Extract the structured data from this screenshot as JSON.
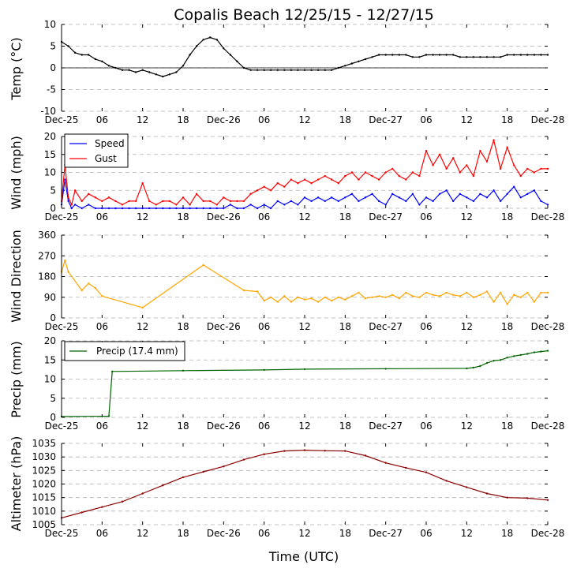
{
  "title": "Copalis Beach 12/25/15 - 12/27/15",
  "xlabel": "Time (UTC)",
  "x_ticks": [
    "Dec-25",
    "06",
    "12",
    "18",
    "Dec-26",
    "06",
    "12",
    "18",
    "Dec-27",
    "06",
    "12",
    "18",
    "Dec-28"
  ],
  "colors": {
    "temp": "#000000",
    "speed": "#0000ff",
    "gust": "#ff0000",
    "direction": "#ffa500",
    "precip": "#006400",
    "altimeter": "#8b0000",
    "zero_line": "#000000",
    "grid": "#b0b0b0"
  },
  "chart_data": [
    {
      "type": "line",
      "name": "temperature",
      "ylabel": "Temp (°C)",
      "ylim": [
        -10,
        10
      ],
      "yticks": [
        -10,
        -5,
        0,
        5,
        10
      ],
      "x_hours_range": [
        0,
        72
      ],
      "series": [
        {
          "name": "Temp",
          "color": "#000000",
          "style": "line",
          "x_hours": [
            0,
            1,
            2,
            3,
            4,
            5,
            6,
            7,
            8,
            9,
            10,
            11,
            12,
            13,
            14,
            15,
            16,
            17,
            18,
            19,
            20,
            21,
            22,
            23,
            24,
            25,
            26,
            27,
            28,
            29,
            30,
            31,
            32,
            33,
            34,
            35,
            36,
            37,
            38,
            39,
            40,
            41,
            42,
            43,
            44,
            45,
            46,
            47,
            48,
            49,
            50,
            51,
            52,
            53,
            54,
            55,
            56,
            57,
            58,
            59,
            60,
            61,
            62,
            63,
            64,
            65,
            66,
            67,
            68,
            69,
            70,
            71,
            72
          ],
          "values": [
            6,
            5,
            3.5,
            3,
            3,
            2,
            1.5,
            0.5,
            0,
            -0.5,
            -0.5,
            -1,
            -0.5,
            -1,
            -1.5,
            -2,
            -1.5,
            -1,
            0.5,
            3,
            5,
            6.5,
            7,
            6.5,
            4.5,
            3,
            1.5,
            0,
            -0.5,
            -0.5,
            -0.5,
            -0.5,
            -0.5,
            -0.5,
            -0.5,
            -0.5,
            -0.5,
            -0.5,
            -0.5,
            -0.5,
            -0.5,
            0,
            0.5,
            1,
            1.5,
            2,
            2.5,
            3,
            3,
            3,
            3,
            3,
            2.5,
            2.5,
            3,
            3,
            3,
            3,
            3,
            2.5,
            2.5,
            2.5,
            2.5,
            2.5,
            2.5,
            2.5,
            3,
            3,
            3,
            3,
            3,
            3,
            3
          ]
        }
      ],
      "zero_line": true,
      "legend": []
    },
    {
      "type": "line",
      "name": "wind",
      "ylabel": "Wind (mph)",
      "ylim": [
        0,
        20
      ],
      "yticks": [
        0,
        5,
        10,
        15,
        20
      ],
      "x_hours_range": [
        0,
        72
      ],
      "series": [
        {
          "name": "Speed",
          "color": "#0000ff",
          "style": "line",
          "x_hours": [
            0,
            0.5,
            1,
            1.5,
            2,
            3,
            4,
            5,
            6,
            7,
            8,
            9,
            10,
            11,
            12,
            13,
            14,
            15,
            16,
            17,
            18,
            19,
            20,
            21,
            22,
            23,
            24,
            25,
            26,
            27,
            28,
            29,
            30,
            31,
            32,
            33,
            34,
            35,
            36,
            37,
            38,
            39,
            40,
            41,
            42,
            43,
            44,
            45,
            46,
            47,
            48,
            49,
            50,
            51,
            52,
            53,
            54,
            55,
            56,
            57,
            58,
            59,
            60,
            61,
            62,
            63,
            64,
            65,
            66,
            67,
            68,
            69,
            70,
            71,
            72
          ],
          "values": [
            1,
            8,
            2,
            0,
            1,
            0,
            1,
            0,
            0,
            0,
            0,
            0,
            0,
            0,
            0,
            0,
            0,
            0,
            0,
            0,
            0,
            0,
            0,
            0,
            0,
            0,
            0,
            1,
            0,
            0,
            1,
            0,
            1,
            0,
            2,
            1,
            2,
            1,
            3,
            2,
            3,
            2,
            3,
            2,
            3,
            4,
            2,
            3,
            4,
            2,
            1,
            4,
            3,
            2,
            4,
            1,
            3,
            2,
            4,
            5,
            2,
            4,
            3,
            2,
            4,
            3,
            5,
            2,
            4,
            6,
            3,
            4,
            5,
            2,
            1
          ]
        },
        {
          "name": "Gust",
          "color": "#ff0000",
          "style": "line",
          "x_hours": [
            0,
            0.5,
            1,
            1.5,
            2,
            3,
            4,
            5,
            6,
            7,
            8,
            9,
            10,
            11,
            12,
            13,
            14,
            15,
            16,
            17,
            18,
            19,
            20,
            21,
            22,
            23,
            24,
            25,
            26,
            27,
            28,
            29,
            30,
            31,
            32,
            33,
            34,
            35,
            36,
            37,
            38,
            39,
            40,
            41,
            42,
            43,
            44,
            45,
            46,
            47,
            48,
            49,
            50,
            51,
            52,
            53,
            54,
            55,
            56,
            57,
            58,
            59,
            60,
            61,
            62,
            63,
            64,
            65,
            66,
            67,
            68,
            69,
            70,
            71,
            72
          ],
          "values": [
            2,
            12,
            3,
            1,
            5,
            2,
            4,
            3,
            2,
            3,
            2,
            1,
            2,
            2,
            7,
            2,
            1,
            2,
            2,
            1,
            3,
            1,
            4,
            2,
            2,
            1,
            3,
            2,
            2,
            2,
            4,
            5,
            6,
            5,
            7,
            6,
            8,
            7,
            8,
            7,
            8,
            9,
            8,
            7,
            9,
            10,
            8,
            10,
            9,
            8,
            10,
            11,
            9,
            8,
            10,
            9,
            16,
            12,
            15,
            11,
            14,
            10,
            12,
            9,
            16,
            13,
            19,
            11,
            17,
            12,
            9,
            11,
            10,
            11,
            11
          ]
        }
      ],
      "legend": [
        "Speed",
        "Gust"
      ]
    },
    {
      "type": "scatter",
      "name": "wind_direction",
      "ylabel": "Wind Direction",
      "ylim": [
        0,
        360
      ],
      "yticks": [
        0,
        90,
        180,
        270,
        360
      ],
      "x_hours_range": [
        0,
        72
      ],
      "series": [
        {
          "name": "Direction",
          "color": "#ffa500",
          "style": "line",
          "x_hours": [
            0,
            0.5,
            1,
            3,
            4,
            5,
            6,
            12,
            21,
            27,
            29,
            30,
            31,
            32,
            33,
            34,
            35,
            36,
            37,
            38,
            39,
            40,
            41,
            42,
            43,
            44,
            45,
            46,
            47,
            48,
            49,
            50,
            51,
            52,
            53,
            54,
            55,
            56,
            57,
            58,
            59,
            60,
            61,
            62,
            63,
            64,
            65,
            66,
            67,
            68,
            69,
            70,
            71,
            72
          ],
          "values": [
            200,
            250,
            200,
            120,
            150,
            130,
            95,
            45,
            230,
            120,
            115,
            75,
            90,
            70,
            95,
            70,
            90,
            80,
            85,
            70,
            90,
            75,
            90,
            80,
            95,
            110,
            85,
            90,
            95,
            90,
            100,
            85,
            110,
            95,
            90,
            110,
            100,
            95,
            110,
            100,
            95,
            110,
            90,
            100,
            115,
            70,
            110,
            60,
            100,
            90,
            110,
            70,
            110,
            110
          ]
        }
      ],
      "legend": []
    },
    {
      "type": "line",
      "name": "precipitation",
      "ylabel": "Precip (mm)",
      "ylim": [
        0,
        20
      ],
      "yticks": [
        0,
        5,
        10,
        15,
        20
      ],
      "x_hours_range": [
        0,
        72
      ],
      "series": [
        {
          "name": "Precip (17.4 mm)",
          "color": "#006400",
          "style": "line",
          "x_hours": [
            0,
            7,
            7.5,
            18,
            30,
            36,
            48,
            60,
            61,
            62,
            63,
            64,
            65,
            66,
            67,
            68,
            69,
            70,
            71,
            72
          ],
          "values": [
            0.2,
            0.3,
            12,
            12.2,
            12.4,
            12.6,
            12.7,
            12.8,
            13,
            13.4,
            14.2,
            14.8,
            15,
            15.6,
            16,
            16.3,
            16.6,
            17,
            17.2,
            17.4
          ]
        }
      ],
      "legend": [
        "Precip (17.4 mm)"
      ]
    },
    {
      "type": "line",
      "name": "altimeter",
      "ylabel": "Altimeter (hPa)",
      "ylim": [
        1005,
        1035
      ],
      "yticks": [
        1005,
        1010,
        1015,
        1020,
        1025,
        1030,
        1035
      ],
      "x_hours_range": [
        0,
        72
      ],
      "series": [
        {
          "name": "Altimeter",
          "color": "#8b0000",
          "style": "line",
          "x_hours": [
            0,
            3,
            6,
            9,
            12,
            15,
            18,
            21,
            24,
            27,
            30,
            33,
            36,
            39,
            42,
            45,
            48,
            51,
            54,
            57,
            60,
            63,
            66,
            69,
            72
          ],
          "values": [
            1007.5,
            1009.5,
            1011.5,
            1013.5,
            1016.5,
            1019.5,
            1022.5,
            1024.5,
            1026.5,
            1029,
            1031,
            1032.2,
            1032.5,
            1032.3,
            1032.2,
            1030.5,
            1027.8,
            1026,
            1024.3,
            1021.2,
            1018.8,
            1016.5,
            1015,
            1014.8,
            1014.1
          ]
        }
      ],
      "legend": []
    }
  ]
}
